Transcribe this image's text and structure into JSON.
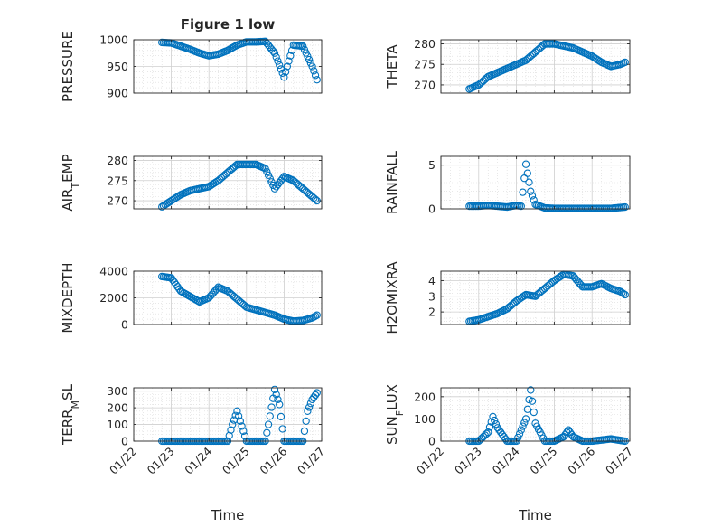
{
  "figure": {
    "title": "Figure 1 low",
    "xlabel": "Time",
    "x_tick_labels": [
      "01/22",
      "01/23",
      "01/24",
      "01/25",
      "01/26",
      "01/27"
    ]
  },
  "style": {
    "marker_color": "#0072BD",
    "axis_color": "#262626",
    "grid_color": "#d9d9d9",
    "background": "#ffffff",
    "marker": "open-circle",
    "grid": true,
    "minor_grid": true
  },
  "chart_data": [
    {
      "type": "scatter",
      "title": "Figure 1 low",
      "ylabel": "PRESSURE",
      "ylim": [
        900,
        1000
      ],
      "yticks": [
        900,
        950,
        1000
      ],
      "x_range": [
        "01/22",
        "01/27"
      ],
      "x": [
        "01/22 18:00",
        "01/23 00:00",
        "01/23 06:00",
        "01/23 12:00",
        "01/23 18:00",
        "01/24 00:00",
        "01/24 06:00",
        "01/24 12:00",
        "01/24 18:00",
        "01/25 00:00",
        "01/25 06:00",
        "01/25 12:00",
        "01/25 18:00",
        "01/26 00:00",
        "01/26 06:00",
        "01/26 12:00",
        "01/26 18:00",
        "01/26 21:00"
      ],
      "values": [
        995,
        994,
        988,
        982,
        975,
        970,
        973,
        980,
        990,
        996,
        996,
        997,
        975,
        930,
        990,
        988,
        950,
        925
      ]
    },
    {
      "type": "scatter",
      "ylabel": "THETA",
      "ylim": [
        268,
        281
      ],
      "yticks": [
        270,
        275,
        280
      ],
      "x_range": [
        "01/22",
        "01/27"
      ],
      "x": [
        "01/22 18:00",
        "01/23 00:00",
        "01/23 06:00",
        "01/23 12:00",
        "01/23 18:00",
        "01/24 00:00",
        "01/24 06:00",
        "01/24 12:00",
        "01/24 18:00",
        "01/25 00:00",
        "01/25 06:00",
        "01/25 12:00",
        "01/25 18:00",
        "01/26 00:00",
        "01/26 06:00",
        "01/26 12:00",
        "01/26 18:00",
        "01/26 21:00"
      ],
      "values": [
        269,
        270,
        272,
        273,
        274,
        275,
        276,
        278,
        280,
        280,
        279.5,
        279,
        278,
        277,
        275.5,
        274.5,
        275,
        275.5
      ]
    },
    {
      "type": "scatter",
      "ylabel": "AIR_TEMP",
      "ylim": [
        268,
        281
      ],
      "yticks": [
        270,
        275,
        280
      ],
      "x_range": [
        "01/22",
        "01/27"
      ],
      "x": [
        "01/22 18:00",
        "01/23 00:00",
        "01/23 06:00",
        "01/23 12:00",
        "01/23 18:00",
        "01/24 00:00",
        "01/24 06:00",
        "01/24 12:00",
        "01/24 18:00",
        "01/25 00:00",
        "01/25 06:00",
        "01/25 12:00",
        "01/25 18:00",
        "01/26 00:00",
        "01/26 06:00",
        "01/26 12:00",
        "01/26 18:00",
        "01/26 21:00"
      ],
      "values": [
        268.5,
        270,
        271.5,
        272.5,
        273,
        273.5,
        275,
        277,
        279,
        279,
        279,
        278,
        273,
        276,
        275,
        273,
        271,
        270
      ]
    },
    {
      "type": "scatter",
      "ylabel": "RAINFALL",
      "ylim": [
        0,
        6
      ],
      "yticks": [
        0,
        5
      ],
      "x_range": [
        "01/22",
        "01/27"
      ],
      "x": [
        "01/22 18:00",
        "01/23 00:00",
        "01/23 06:00",
        "01/23 12:00",
        "01/23 18:00",
        "01/24 00:00",
        "01/24 03:00",
        "01/24 06:00",
        "01/24 09:00",
        "01/24 12:00",
        "01/24 18:00",
        "01/25 00:00",
        "01/25 12:00",
        "01/26 00:00",
        "01/26 12:00",
        "01/26 21:00"
      ],
      "values": [
        0.3,
        0.3,
        0.4,
        0.3,
        0.2,
        0.4,
        0.3,
        5.1,
        2.0,
        0.5,
        0.1,
        0.05,
        0.05,
        0.05,
        0.05,
        0.2
      ]
    },
    {
      "type": "scatter",
      "ylabel": "MIXDEPTH",
      "ylim": [
        0,
        4000
      ],
      "yticks": [
        0,
        2000,
        4000
      ],
      "x_range": [
        "01/22",
        "01/27"
      ],
      "x": [
        "01/22 18:00",
        "01/23 00:00",
        "01/23 06:00",
        "01/23 12:00",
        "01/23 18:00",
        "01/24 00:00",
        "01/24 06:00",
        "01/24 12:00",
        "01/24 18:00",
        "01/25 00:00",
        "01/25 06:00",
        "01/25 12:00",
        "01/25 18:00",
        "01/26 00:00",
        "01/26 06:00",
        "01/26 12:00",
        "01/26 18:00",
        "01/26 21:00"
      ],
      "values": [
        3600,
        3500,
        2500,
        2100,
        1700,
        2000,
        2800,
        2500,
        1900,
        1300,
        1100,
        900,
        700,
        400,
        250,
        300,
        500,
        700
      ]
    },
    {
      "type": "scatter",
      "ylabel": "H2OMIXRA",
      "ylim": [
        1.2,
        4.6
      ],
      "yticks": [
        2,
        3,
        4
      ],
      "x_range": [
        "01/22",
        "01/27"
      ],
      "x": [
        "01/22 18:00",
        "01/23 00:00",
        "01/23 06:00",
        "01/23 12:00",
        "01/23 18:00",
        "01/24 00:00",
        "01/24 06:00",
        "01/24 12:00",
        "01/24 18:00",
        "01/25 00:00",
        "01/25 06:00",
        "01/25 12:00",
        "01/25 18:00",
        "01/26 00:00",
        "01/26 06:00",
        "01/26 12:00",
        "01/26 18:00",
        "01/26 21:00"
      ],
      "values": [
        1.4,
        1.5,
        1.7,
        1.9,
        2.2,
        2.7,
        3.1,
        3.0,
        3.5,
        4.0,
        4.4,
        4.3,
        3.6,
        3.6,
        3.8,
        3.5,
        3.3,
        3.1
      ]
    },
    {
      "type": "scatter",
      "ylabel": "TERR_MSL",
      "ylim": [
        0,
        320
      ],
      "yticks": [
        0,
        100,
        200,
        300
      ],
      "x_range": [
        "01/22",
        "01/27"
      ],
      "x": [
        "01/22 18:00",
        "01/23 00:00",
        "01/23 12:00",
        "01/24 00:00",
        "01/24 12:00",
        "01/24 15:00",
        "01/24 18:00",
        "01/25 00:00",
        "01/25 12:00",
        "01/25 15:00",
        "01/25 18:00",
        "01/25 21:00",
        "01/26 00:00",
        "01/26 06:00",
        "01/26 12:00",
        "01/26 15:00",
        "01/26 18:00",
        "01/26 21:00"
      ],
      "values": [
        0,
        0,
        0,
        0,
        0,
        100,
        180,
        0,
        0,
        150,
        310,
        220,
        0,
        0,
        0,
        180,
        250,
        290
      ]
    },
    {
      "type": "scatter",
      "ylabel": "SUN_FLUX",
      "ylim": [
        0,
        240
      ],
      "yticks": [
        0,
        100,
        200
      ],
      "x_range": [
        "01/22",
        "01/27"
      ],
      "x": [
        "01/22 18:00",
        "01/23 00:00",
        "01/23 06:00",
        "01/23 09:00",
        "01/23 12:00",
        "01/23 18:00",
        "01/24 00:00",
        "01/24 06:00",
        "01/24 09:00",
        "01/24 12:00",
        "01/24 18:00",
        "01/25 00:00",
        "01/25 06:00",
        "01/25 09:00",
        "01/25 12:00",
        "01/25 18:00",
        "01/26 00:00",
        "01/26 12:00",
        "01/26 21:00"
      ],
      "values": [
        0,
        0,
        40,
        110,
        60,
        0,
        0,
        100,
        230,
        80,
        0,
        0,
        20,
        50,
        20,
        0,
        0,
        10,
        0
      ]
    }
  ]
}
